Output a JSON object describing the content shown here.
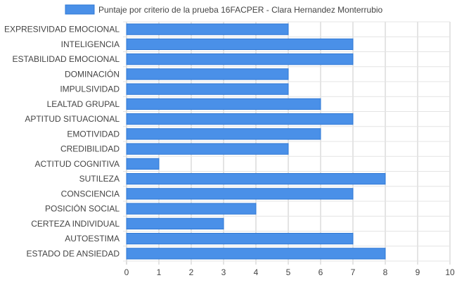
{
  "chart_data": {
    "type": "bar",
    "orientation": "horizontal",
    "categories": [
      "EXPRESIVIDAD EMOCIONAL",
      "INTELIGENCIA",
      "ESTABILIDAD EMOCIONAL",
      "DOMINACIÓN",
      "IMPULSIVIDAD",
      "LEALTAD GRUPAL",
      "APTITUD SITUACIONAL",
      "EMOTIVIDAD",
      "CREDIBILIDAD",
      "ACTITUD COGNITIVA",
      "SUTILEZA",
      "CONSCIENCIA",
      "POSICIÓN SOCIAL",
      "CERTEZA INDIVIDUAL",
      "AUTOESTIMA",
      "ESTADO DE ANSIEDAD"
    ],
    "series": [
      {
        "name": "Puntaje por criterio de la prueba 16FACPER - Clara Hernandez Monterrubio",
        "values": [
          5,
          7,
          7,
          5,
          5,
          6,
          7,
          6,
          5,
          1,
          8,
          7,
          4,
          3,
          7,
          8
        ]
      }
    ],
    "xlim": [
      0,
      10
    ],
    "xticks": [
      "0",
      "1",
      "2",
      "3",
      "4",
      "5",
      "6",
      "7",
      "8",
      "9",
      "10"
    ],
    "grid": true,
    "legend": "top-center",
    "colors": {
      "bar_fill": "#4a90e8",
      "bar_border": "#2f78d4",
      "grid": "#c8c8c8",
      "axis": "#bdbdbd",
      "text": "#444444"
    }
  }
}
